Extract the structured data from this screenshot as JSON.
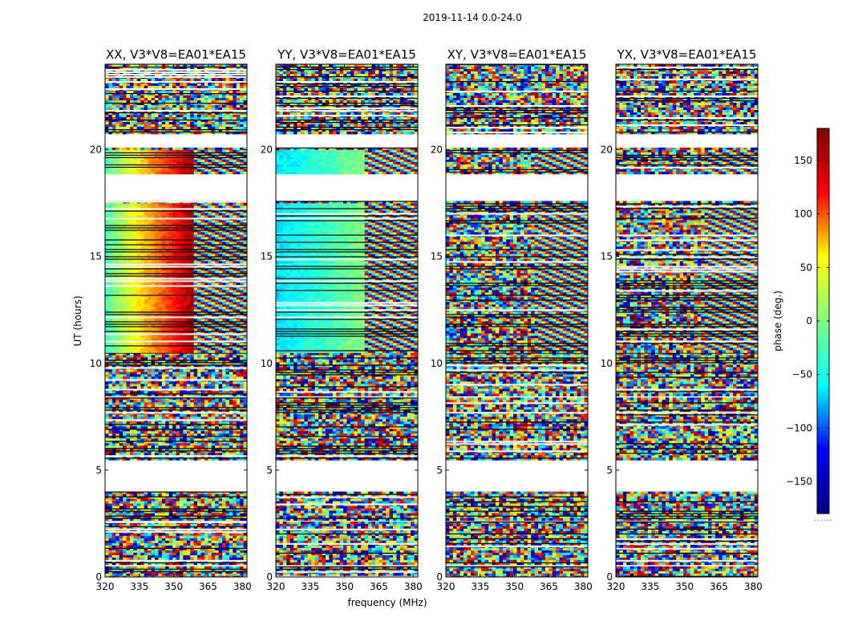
{
  "figure": {
    "title": "2019-11-14 0.0-24.0",
    "xlabel": "frequency (MHz)",
    "ylabel": "UT (hours)",
    "colorbar_label": "phase (deg.)",
    "colorbar_footnote": "......"
  },
  "colorbar": {
    "range": [
      -180,
      180
    ],
    "ticks": [
      "150",
      "100",
      "50",
      "0",
      "−50",
      "−100",
      "−150"
    ],
    "tick_values": [
      150,
      100,
      50,
      0,
      -50,
      -100,
      -150
    ],
    "colormap": "jet",
    "colors": [
      "#00007f",
      "#0000ff",
      "#00ffff",
      "#7fff7f",
      "#ffff00",
      "#ff0000",
      "#7f0000"
    ]
  },
  "chart_data": {
    "type": "heatmap",
    "x_ticks": [
      "320",
      "335",
      "350",
      "365",
      "380"
    ],
    "x_tick_values": [
      320,
      335,
      350,
      365,
      380
    ],
    "xlim": [
      320,
      382
    ],
    "y_ticks": [
      "0",
      "5",
      "10",
      "15",
      "20"
    ],
    "y_tick_values": [
      0,
      5,
      10,
      15,
      20
    ],
    "ylim": [
      0,
      24
    ],
    "panels": [
      {
        "title": "XX, V3*V8=EA01*EA15",
        "pol": "XX"
      },
      {
        "title": "YY, V3*V8=EA01*EA15",
        "pol": "YY"
      },
      {
        "title": "XY, V3*V8=EA01*EA15",
        "pol": "XY"
      },
      {
        "title": "YX, V3*V8=EA01*EA15",
        "pol": "YX"
      }
    ],
    "data_segments_ut": [
      [
        0.0,
        0.5
      ],
      [
        0.6,
        2.6
      ],
      [
        2.7,
        4.0
      ],
      [
        5.5,
        8.4
      ],
      [
        8.5,
        10.5
      ],
      [
        10.6,
        17.6
      ],
      [
        18.9,
        20.1
      ],
      [
        20.8,
        24.0
      ]
    ]
  }
}
